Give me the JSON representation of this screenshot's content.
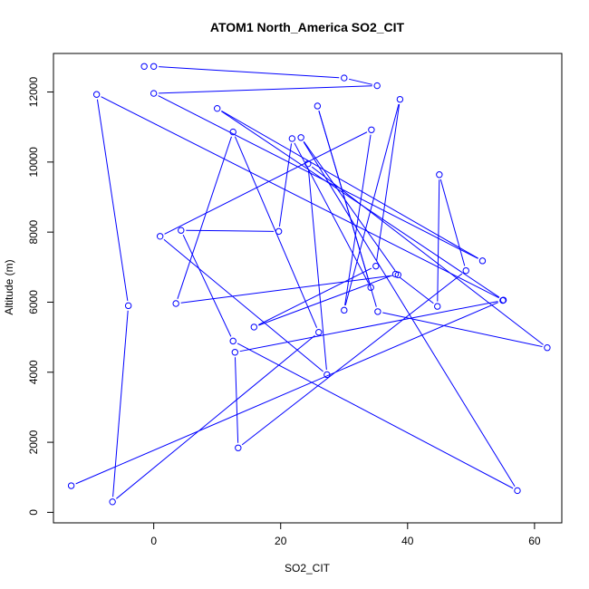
{
  "chart_data": {
    "type": "scatter",
    "title": "ATOM1 North_America SO2_CIT",
    "xlabel": "SO2_CIT",
    "ylabel": "Altitude (m)",
    "xlim": [
      -15.8,
      64.3
    ],
    "ylim": [
      -300,
      13100
    ],
    "x_ticks": [
      0,
      20,
      40,
      60
    ],
    "y_ticks": [
      0,
      2000,
      4000,
      6000,
      8000,
      10000,
      12000
    ],
    "grid": false,
    "series": [
      {
        "color": "#0000ff",
        "connect_points": true,
        "points": [
          [
            -1.5,
            12730
          ],
          [
            0,
            12730
          ],
          [
            30,
            12400
          ],
          [
            35.2,
            12180
          ],
          [
            0,
            11960
          ],
          [
            51.8,
            7180
          ],
          [
            10,
            11530
          ],
          [
            55.1,
            6060
          ],
          [
            -9,
            11930
          ],
          [
            -4,
            5900
          ],
          [
            -6.5,
            300
          ],
          [
            26,
            5140
          ],
          [
            12.5,
            10860
          ],
          [
            3.5,
            5960
          ],
          [
            38.5,
            6780
          ],
          [
            23.2,
            10700
          ],
          [
            57.3,
            620
          ],
          [
            12.5,
            4890
          ],
          [
            4.3,
            8050
          ],
          [
            19.7,
            8020
          ],
          [
            21.8,
            10670
          ],
          [
            34.2,
            6420
          ],
          [
            25.8,
            11600
          ],
          [
            35.3,
            5730
          ],
          [
            62,
            4700
          ],
          [
            24.3,
            9950
          ],
          [
            27.3,
            3930
          ],
          [
            1,
            7880
          ],
          [
            34.3,
            10920
          ],
          [
            30,
            5770
          ],
          [
            38.8,
            11790
          ],
          [
            35,
            7030
          ],
          [
            15.8,
            5290
          ],
          [
            38.1,
            6800
          ],
          [
            44.7,
            5880
          ],
          [
            45,
            9640
          ],
          [
            49.2,
            6900
          ],
          [
            13.3,
            1840
          ],
          [
            12.8,
            4570
          ],
          [
            55,
            6050
          ],
          [
            -13,
            760
          ]
        ]
      }
    ]
  }
}
